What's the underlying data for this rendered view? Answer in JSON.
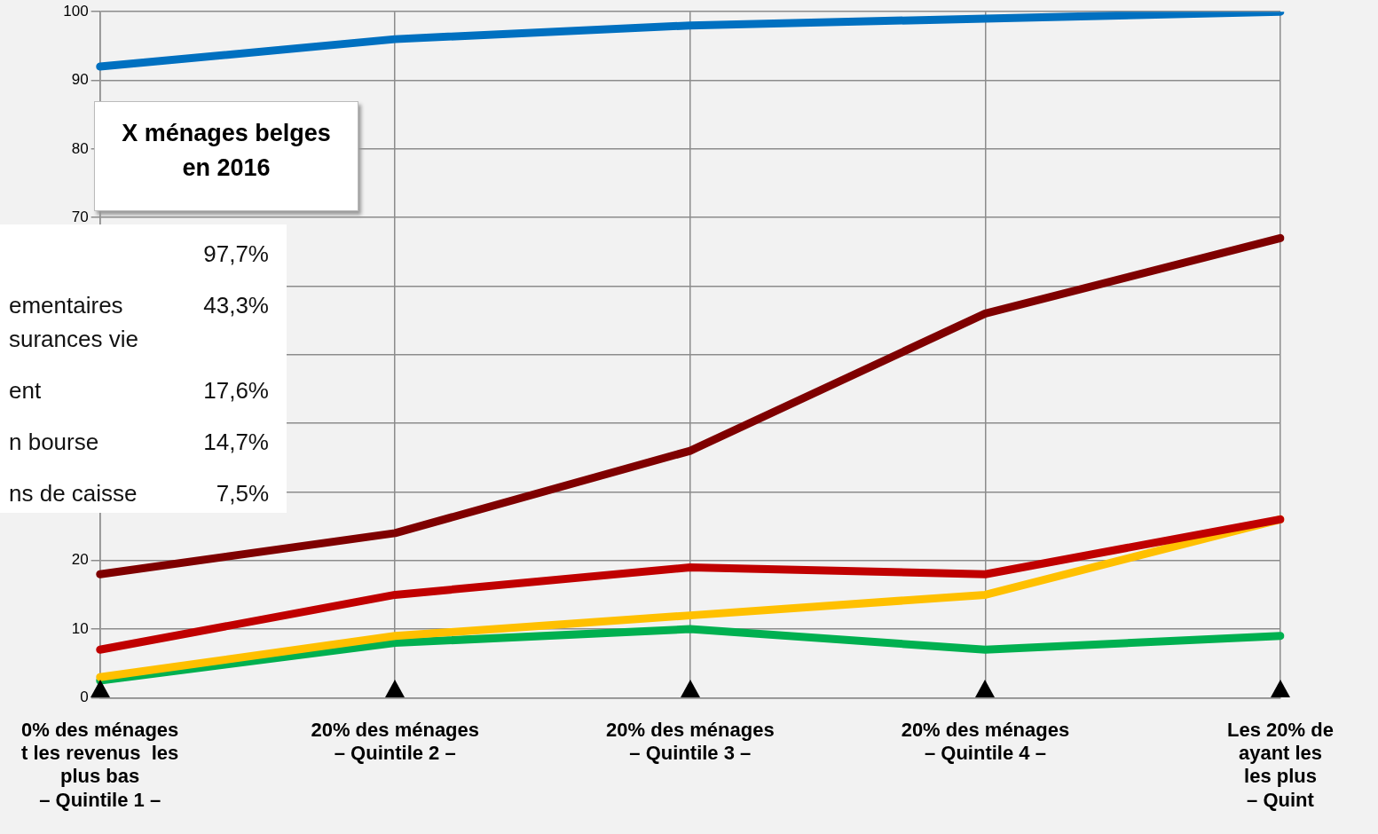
{
  "chart_data": {
    "type": "line",
    "categories": [
      "0% des ménages\nt les revenus  les\nplus bas\n– Quintile 1 –",
      "20% des ménages\n– Quintile 2 –",
      "20% des ménages\n– Quintile 3 –",
      "20% des ménages\n– Quintile 4 –",
      "Les 20% de\nayant les\nles plus\n– Quint"
    ],
    "series": [
      {
        "color": "#0070c0",
        "values": [
          92,
          96,
          98,
          99,
          100
        ]
      },
      {
        "color": "#7f0000",
        "values": [
          18,
          24,
          36,
          56,
          67
        ]
      },
      {
        "color": "#c00000",
        "values": [
          7,
          15,
          19,
          18,
          26
        ]
      },
      {
        "color": "#ffc000",
        "values": [
          3,
          9,
          12,
          15,
          26
        ]
      },
      {
        "color": "#00b050",
        "values": [
          2.5,
          8,
          10,
          7,
          9
        ]
      }
    ],
    "ylim": [
      0,
      100
    ],
    "yticks": [
      0,
      10,
      20,
      {
        "value": 30,
        "label": null
      },
      {
        "value": 40,
        "label": null
      },
      {
        "value": 50,
        "label": null
      },
      {
        "value": 60,
        "label": null
      },
      70,
      80,
      90,
      100
    ],
    "grid": true,
    "legend": false,
    "marker": "none",
    "line_style": "solid",
    "annotations": [
      "X ménages belges\nen 2016",
      "\t97,7%",
      "ementaires\t43,3%",
      "surances vie",
      "ent\t17,6%",
      "n bourse\t14,7%",
      "ns de caisse\t7,5%"
    ]
  }
}
